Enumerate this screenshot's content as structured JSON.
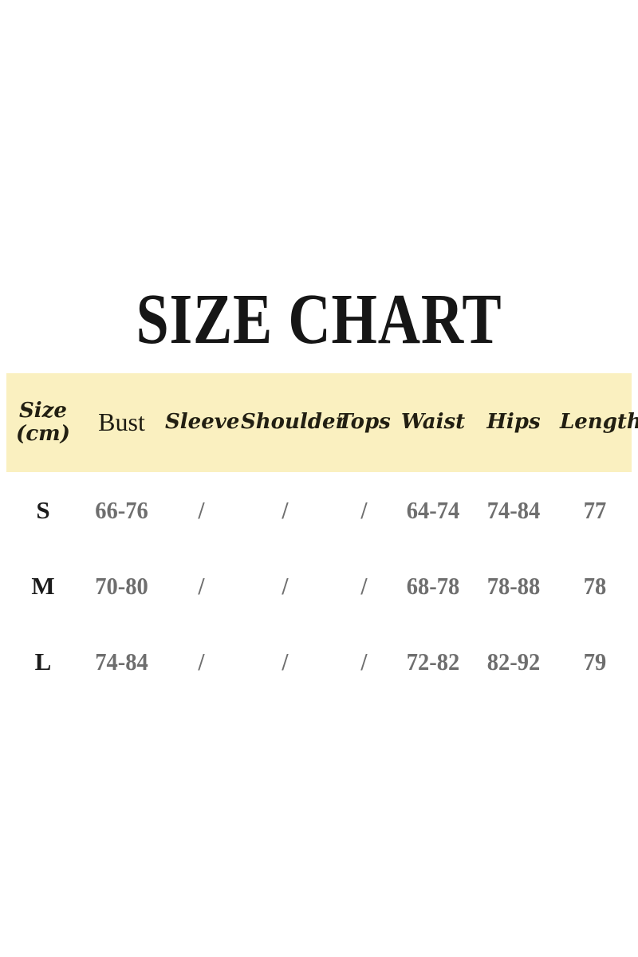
{
  "title": "SIZE CHART",
  "colors": {
    "header_band": "#FAF0C0",
    "title_text": "#161616",
    "header_text": "#221F12",
    "row_label_text": "#1B1B1B",
    "value_text": "#6E6E6E",
    "background": "#FFFFFF"
  },
  "chart_data": {
    "type": "table",
    "title": "SIZE CHART",
    "columns": [
      "Size (cm)",
      "Bust",
      "Sleeve",
      "Shoulder",
      "Tops",
      "Waist",
      "Hips",
      "Length"
    ],
    "rows": [
      [
        "S",
        "66-76",
        "/",
        "/",
        "/",
        "64-74",
        "74-84",
        "77"
      ],
      [
        "M",
        "70-80",
        "/",
        "/",
        "/",
        "68-78",
        "78-88",
        "78"
      ],
      [
        "L",
        "74-84",
        "/",
        "/",
        "/",
        "72-82",
        "82-92",
        "79"
      ]
    ],
    "layout": {
      "legend": "none",
      "grid": "off",
      "header_background": "#FAF0C0"
    }
  }
}
